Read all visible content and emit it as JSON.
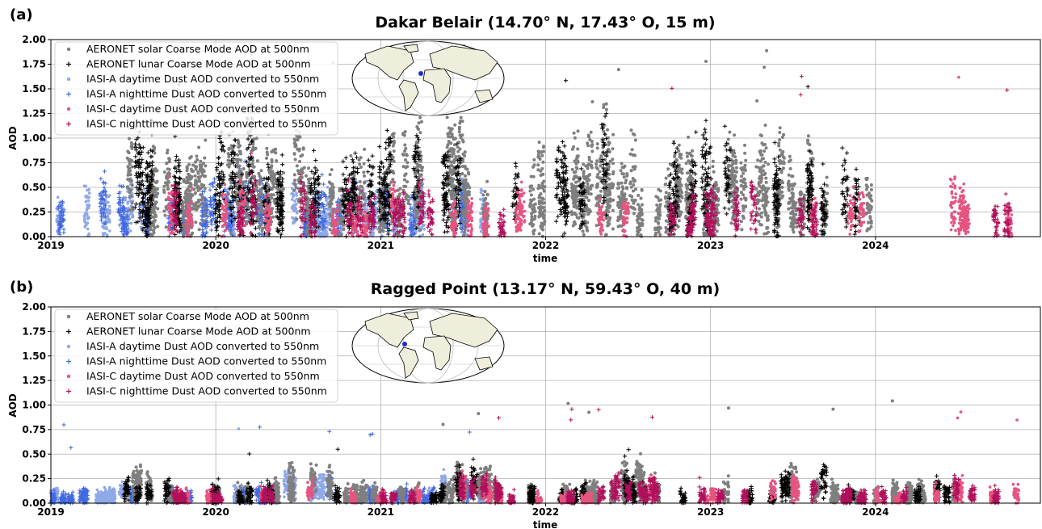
{
  "chart_data": [
    {
      "type": "scatter",
      "panel_label": "(a)",
      "title": "Dakar Belair (14.70° N, 17.43° O, 15 m)",
      "xlabel": "time",
      "ylabel": "AOD",
      "xlim": [
        "2019-01-01",
        "2024-12-31"
      ],
      "ylim": [
        0,
        2.0
      ],
      "x_ticks": [
        "2019",
        "2020",
        "2021",
        "2022",
        "2023",
        "2024"
      ],
      "y_ticks": [
        "0.00",
        "0.25",
        "0.50",
        "0.75",
        "1.00",
        "1.25",
        "1.50",
        "1.75",
        "2.00"
      ],
      "grid": true,
      "legend_position": "top-left",
      "map_inset": "world map with site marker over West Africa",
      "series": [
        {
          "name": "AERONET solar Coarse Mode AOD at 500nm",
          "marker": "dot",
          "color": "#7f7f7f",
          "monthly_profile": [
            [
              0.0,
              0.0
            ],
            [
              0.3,
              0.45
            ],
            [
              0.55,
              0.3
            ],
            [
              0.1,
              0.25
            ],
            [
              0.5,
              0.55
            ],
            [
              0.6,
              0.45
            ],
            [
              0.3,
              0.35
            ],
            [
              0.25,
              0.25
            ],
            [
              0.45,
              0.45
            ],
            [
              0.55,
              0.5
            ],
            [
              0.4,
              0.3
            ],
            [
              0.45,
              0.35
            ],
            [
              0.35,
              0.45
            ],
            [
              0.55,
              0.35
            ],
            [
              0.4,
              0.5
            ],
            [
              0.3,
              0.6
            ],
            [
              0.4,
              0.45
            ],
            [
              0.3,
              0.3
            ],
            [
              0.45,
              0.35
            ],
            [
              0.8,
              0.45
            ],
            [
              0.5,
              0.4
            ],
            [
              0.35,
              0.35
            ],
            [
              0.3,
              0.45
            ],
            [
              0.3,
              0.3
            ],
            [
              0.3,
              0.25
            ],
            [
              0.4,
              0.5
            ],
            [
              0.35,
              0.4
            ],
            [
              0.3,
              0.5
            ],
            [
              0.25,
              0.35
            ],
            [
              0.3,
              0.3
            ],
            [
              0.5,
              0.55
            ],
            [
              0.45,
              0.5
            ],
            [
              0.3,
              0.35
            ],
            [
              0.25,
              0.4
            ],
            [
              0.2,
              0.3
            ],
            [
              0.25,
              0.2
            ],
            [
              0.3,
              0.2
            ],
            [
              0.35,
              0.4
            ],
            [
              0.25,
              0.35
            ],
            [
              0.2,
              0.45
            ],
            [
              0.25,
              0.3
            ],
            [
              0.2,
              0.25
            ]
          ]
        },
        {
          "name": "AERONET lunar Coarse Mode AOD at 500nm",
          "marker": "plus",
          "color": "#000000"
        },
        {
          "name": "IASI-A daytime Dust AOD converted to 550nm",
          "marker": "dot",
          "color": "#8fa8e8"
        },
        {
          "name": "IASI-A nighttime Dust AOD converted to 550nm",
          "marker": "plus",
          "color": "#4169e1"
        },
        {
          "name": "IASI-C daytime Dust AOD converted to 550nm",
          "marker": "dot",
          "color": "#e75480"
        },
        {
          "name": "IASI-C nighttime Dust AOD converted to 550nm",
          "marker": "plus",
          "color": "#b0105a"
        }
      ],
      "approx_ranges": {
        "AERONET_solar": {
          "start": "2019-06",
          "end": "2024-01",
          "typical": [
            0.1,
            0.9
          ],
          "max": 1.95
        },
        "AERONET_lunar": {
          "start": "2019-06",
          "end": "2024-01",
          "typical": [
            0.1,
            1.0
          ],
          "max": 1.75
        },
        "IASI_A": {
          "start": "2019-01",
          "end": "2021-09",
          "typical": [
            0.05,
            0.6
          ]
        },
        "IASI_C": {
          "start": "2019-09",
          "end": "2024-12",
          "typical": [
            0.05,
            0.6
          ],
          "max": 1.63
        }
      }
    },
    {
      "type": "scatter",
      "panel_label": "(b)",
      "title": "Ragged Point (13.17° N, 59.43° O, 40 m)",
      "xlabel": "time",
      "ylabel": "AOD",
      "xlim": [
        "2019-01-01",
        "2024-12-31"
      ],
      "ylim": [
        0,
        2.0
      ],
      "x_ticks": [
        "2019",
        "2020",
        "2021",
        "2022",
        "2023",
        "2024"
      ],
      "y_ticks": [
        "0.00",
        "0.25",
        "0.50",
        "0.75",
        "1.00",
        "1.25",
        "1.50",
        "1.75",
        "2.00"
      ],
      "grid": true,
      "legend_position": "top-left",
      "map_inset": "world map with site marker over the Caribbean",
      "series": [
        {
          "name": "AERONET solar Coarse Mode AOD at 500nm",
          "marker": "dot",
          "color": "#7f7f7f"
        },
        {
          "name": "AERONET lunar Coarse Mode AOD at 500nm",
          "marker": "plus",
          "color": "#000000"
        },
        {
          "name": "IASI-A daytime Dust AOD converted to 550nm",
          "marker": "dot",
          "color": "#8fa8e8"
        },
        {
          "name": "IASI-A nighttime Dust AOD converted to 550nm",
          "marker": "plus",
          "color": "#4169e1"
        },
        {
          "name": "IASI-C daytime Dust AOD converted to 550nm",
          "marker": "dot",
          "color": "#e75480"
        },
        {
          "name": "IASI-C nighttime Dust AOD converted to 550nm",
          "marker": "plus",
          "color": "#b0105a"
        }
      ],
      "approx_ranges": {
        "AERONET_solar": {
          "start": "2019-06",
          "end": "2024-07",
          "typical": [
            0.02,
            0.35
          ],
          "max": 1.05
        },
        "AERONET_lunar": {
          "start": "2019-06",
          "end": "2024-07",
          "typical": [
            0.02,
            0.3
          ],
          "max": 0.55
        },
        "IASI_A": {
          "start": "2019-01",
          "end": "2021-09",
          "typical": [
            0.03,
            0.25
          ],
          "max": 0.8
        },
        "IASI_C": {
          "start": "2019-09",
          "end": "2024-12",
          "typical": [
            0.03,
            0.25
          ],
          "max": 0.96
        }
      }
    }
  ]
}
